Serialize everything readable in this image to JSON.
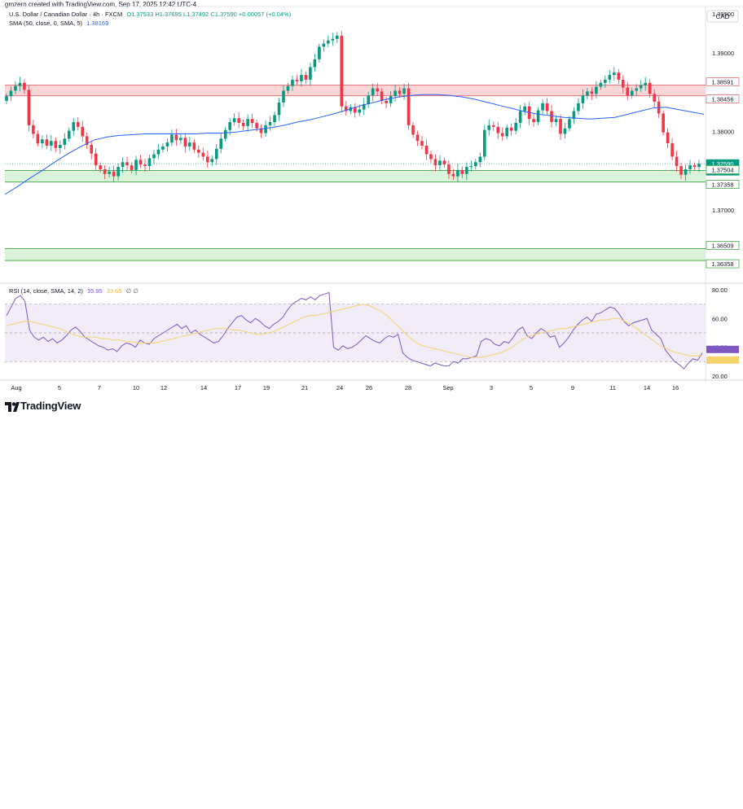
{
  "header": {
    "created_by": "gmzern created with TradingView.com, Sep 17, 2025 12:42 UTC-4",
    "symbol": "U.S. Dollar / Canadian Dollar · 4h · FXCM",
    "ohlc": "O1.37533 H1.37695 L1.37492 C1.37590 +0.00057 (+0.04%)",
    "sma_label": "SMA (50, close, 0, SMA, 5)",
    "sma_value": "1.38169",
    "currency": "CAD"
  },
  "rsi_legend": {
    "label": "RSI (14, close, SMA, 14, 2)",
    "value": "35.95",
    "sma_value": "33.65",
    "extra": "∅ ∅"
  },
  "footer": {
    "brand": "TradingView"
  },
  "colors": {
    "up": "#089981",
    "down": "#f23645",
    "sma": "#2962ff",
    "rsi": "#7e57c2",
    "rsi_sma": "#f5d36a",
    "resistance_fill": "#f9d6d8",
    "resistance_line": "#e5717a",
    "support_fill": "#d9f2d9",
    "support_line": "#4caf50"
  },
  "chart_data": {
    "type": "candlestick",
    "title": "U.S. Dollar / Canadian Dollar · 4h · FXCM",
    "ylim": [
      1.361,
      1.3955
    ],
    "y_ticks": [
      "1.39500",
      "1.39000",
      "1.38000",
      "1.37000"
    ],
    "y_tick_values": [
      1.395,
      1.39,
      1.38,
      1.37
    ],
    "x_ticks": [
      "Aug",
      "5",
      "7",
      "10",
      "12",
      "14",
      "17",
      "19",
      "21",
      "24",
      "26",
      "28",
      "Sep",
      "3",
      "5",
      "9",
      "11",
      "14",
      "16"
    ],
    "price_labels": [
      {
        "text": "1.38591",
        "value": 1.38591,
        "kind": "resistance"
      },
      {
        "text": "1.38456",
        "value": 1.38456,
        "kind": "resistance"
      },
      {
        "text": "1.37590",
        "value": 1.3759,
        "kind": "last"
      },
      {
        "text": "17:16",
        "value": null,
        "kind": "countdown"
      },
      {
        "text": "1.37504",
        "value": 1.37504,
        "kind": "support"
      },
      {
        "text": "1.37358",
        "value": 1.37358,
        "kind": "support"
      },
      {
        "text": "1.36509",
        "value": 1.36509,
        "kind": "support"
      },
      {
        "text": "1.36358",
        "value": 1.36358,
        "kind": "support"
      }
    ],
    "zones": [
      {
        "kind": "resistance",
        "top": 1.38591,
        "bottom": 1.38456
      },
      {
        "kind": "support",
        "top": 1.37504,
        "bottom": 1.37358
      },
      {
        "kind": "support",
        "top": 1.36509,
        "bottom": 1.36358
      }
    ],
    "close_series": [
      1.3845,
      1.3852,
      1.3858,
      1.3862,
      1.3853,
      1.3808,
      1.3797,
      1.3785,
      1.379,
      1.3782,
      1.3788,
      1.3779,
      1.3783,
      1.3791,
      1.3801,
      1.3812,
      1.3806,
      1.3794,
      1.3783,
      1.3772,
      1.3757,
      1.3752,
      1.3746,
      1.3749,
      1.3743,
      1.3755,
      1.3761,
      1.3757,
      1.3751,
      1.3764,
      1.3758,
      1.3756,
      1.3766,
      1.3771,
      1.3777,
      1.3781,
      1.3786,
      1.3796,
      1.3789,
      1.3792,
      1.3781,
      1.3786,
      1.3777,
      1.3773,
      1.3768,
      1.3761,
      1.3765,
      1.3778,
      1.3791,
      1.3802,
      1.3812,
      1.3817,
      1.3811,
      1.3807,
      1.3816,
      1.3811,
      1.3804,
      1.3798,
      1.3808,
      1.3812,
      1.3821,
      1.3837,
      1.3852,
      1.3858,
      1.3866,
      1.3864,
      1.3872,
      1.3866,
      1.3882,
      1.3892,
      1.3908,
      1.3912,
      1.3916,
      1.3918,
      1.3922,
      1.3832,
      1.3826,
      1.3831,
      1.3824,
      1.3828,
      1.3835,
      1.3846,
      1.3855,
      1.3851,
      1.3839,
      1.3836,
      1.3845,
      1.3852,
      1.3848,
      1.3855,
      1.3808,
      1.3796,
      1.3788,
      1.3782,
      1.3771,
      1.3765,
      1.3757,
      1.3763,
      1.3758,
      1.3746,
      1.3743,
      1.3751,
      1.3746,
      1.3755,
      1.3756,
      1.3761,
      1.3768,
      1.3802,
      1.3808,
      1.3806,
      1.3798,
      1.3794,
      1.3805,
      1.3801,
      1.3811,
      1.3826,
      1.3832,
      1.3816,
      1.3812,
      1.3827,
      1.3836,
      1.3826,
      1.3812,
      1.3816,
      1.3797,
      1.3804,
      1.3816,
      1.3826,
      1.3836,
      1.3846,
      1.3851,
      1.3848,
      1.3857,
      1.3862,
      1.3866,
      1.3872,
      1.3875,
      1.3866,
      1.3856,
      1.3846,
      1.3852,
      1.3855,
      1.3859,
      1.3862,
      1.3848,
      1.3838,
      1.3823,
      1.3799,
      1.3785,
      1.3768,
      1.3756,
      1.3745,
      1.3752,
      1.3757,
      1.3755,
      1.3759
    ],
    "sma_series": [
      1.372,
      1.373,
      1.3741,
      1.3751,
      1.3762,
      1.3772,
      1.3781,
      1.3789,
      1.3793,
      1.3795,
      1.3796,
      1.3797,
      1.3797,
      1.3797,
      1.3797,
      1.3797,
      1.3798,
      1.3798,
      1.3799,
      1.3801,
      1.3803,
      1.3805,
      1.3808,
      1.3812,
      1.3815,
      1.3819,
      1.3823,
      1.3828,
      1.3833,
      1.3837,
      1.3841,
      1.3844,
      1.3846,
      1.3847,
      1.3847,
      1.3846,
      1.3844,
      1.3841,
      1.3837,
      1.3833,
      1.3829,
      1.3825,
      1.3822,
      1.382,
      1.3818,
      1.3817,
      1.3816,
      1.3817,
      1.3818,
      1.3822,
      1.3826,
      1.383,
      1.3831,
      1.3828,
      1.3825,
      1.3822
    ],
    "rsi": {
      "ylim": [
        20,
        80
      ],
      "y_ticks": [
        "80.00",
        "60.00",
        "40.00",
        "20.00"
      ],
      "y_tick_values": [
        80,
        60,
        40,
        20
      ],
      "band": [
        30,
        70
      ],
      "values": [
        62,
        68,
        74,
        76,
        72,
        52,
        47,
        45,
        47,
        44,
        46,
        43,
        45,
        48,
        52,
        54,
        51,
        47,
        45,
        43,
        41,
        40,
        38,
        39,
        37,
        41,
        43,
        42,
        40,
        45,
        43,
        42,
        46,
        48,
        50,
        52,
        54,
        56,
        53,
        55,
        50,
        52,
        49,
        47,
        45,
        43,
        44,
        48,
        53,
        57,
        61,
        62,
        59,
        57,
        60,
        58,
        55,
        53,
        56,
        58,
        61,
        66,
        70,
        72,
        74,
        73,
        75,
        73,
        76,
        77,
        78,
        40,
        38,
        41,
        39,
        40,
        42,
        45,
        48,
        46,
        44,
        43,
        46,
        48,
        47,
        49,
        36,
        33,
        31,
        30,
        29,
        28,
        27,
        29,
        28,
        27,
        27,
        30,
        29,
        32,
        32,
        33,
        34,
        44,
        46,
        45,
        42,
        41,
        44,
        43,
        47,
        52,
        54,
        48,
        46,
        50,
        53,
        51,
        47,
        48,
        40,
        43,
        47,
        52,
        56,
        59,
        61,
        58,
        63,
        64,
        66,
        68,
        67,
        63,
        58,
        55,
        57,
        58,
        59,
        60,
        52,
        49,
        46,
        38,
        34,
        30,
        28,
        25,
        29,
        32,
        31,
        36
      ],
      "sma_values": [
        55,
        56,
        57,
        58,
        58,
        57,
        56,
        55,
        54,
        53,
        51,
        49,
        48,
        47,
        47,
        47,
        46,
        46,
        45,
        45,
        44,
        44,
        43,
        43,
        43,
        43,
        44,
        45,
        46,
        47,
        48,
        49,
        50,
        51,
        52,
        53,
        53,
        53,
        52,
        52,
        51,
        50,
        49,
        49,
        50,
        51,
        53,
        55,
        57,
        59,
        61,
        62,
        62,
        63,
        64,
        65,
        66,
        67,
        68,
        69,
        70,
        69,
        67,
        65,
        62,
        58,
        54,
        50,
        46,
        43,
        41,
        40,
        39,
        38,
        37,
        36,
        35,
        34,
        33,
        33,
        33,
        34,
        35,
        36,
        38,
        40,
        43,
        46,
        48,
        49,
        50,
        51,
        52,
        53,
        53,
        54,
        55,
        56,
        57,
        58,
        59,
        59,
        60,
        60,
        58,
        56,
        53,
        50,
        47,
        44,
        41,
        39,
        37,
        36,
        35,
        34,
        34,
        34
      ]
    }
  }
}
